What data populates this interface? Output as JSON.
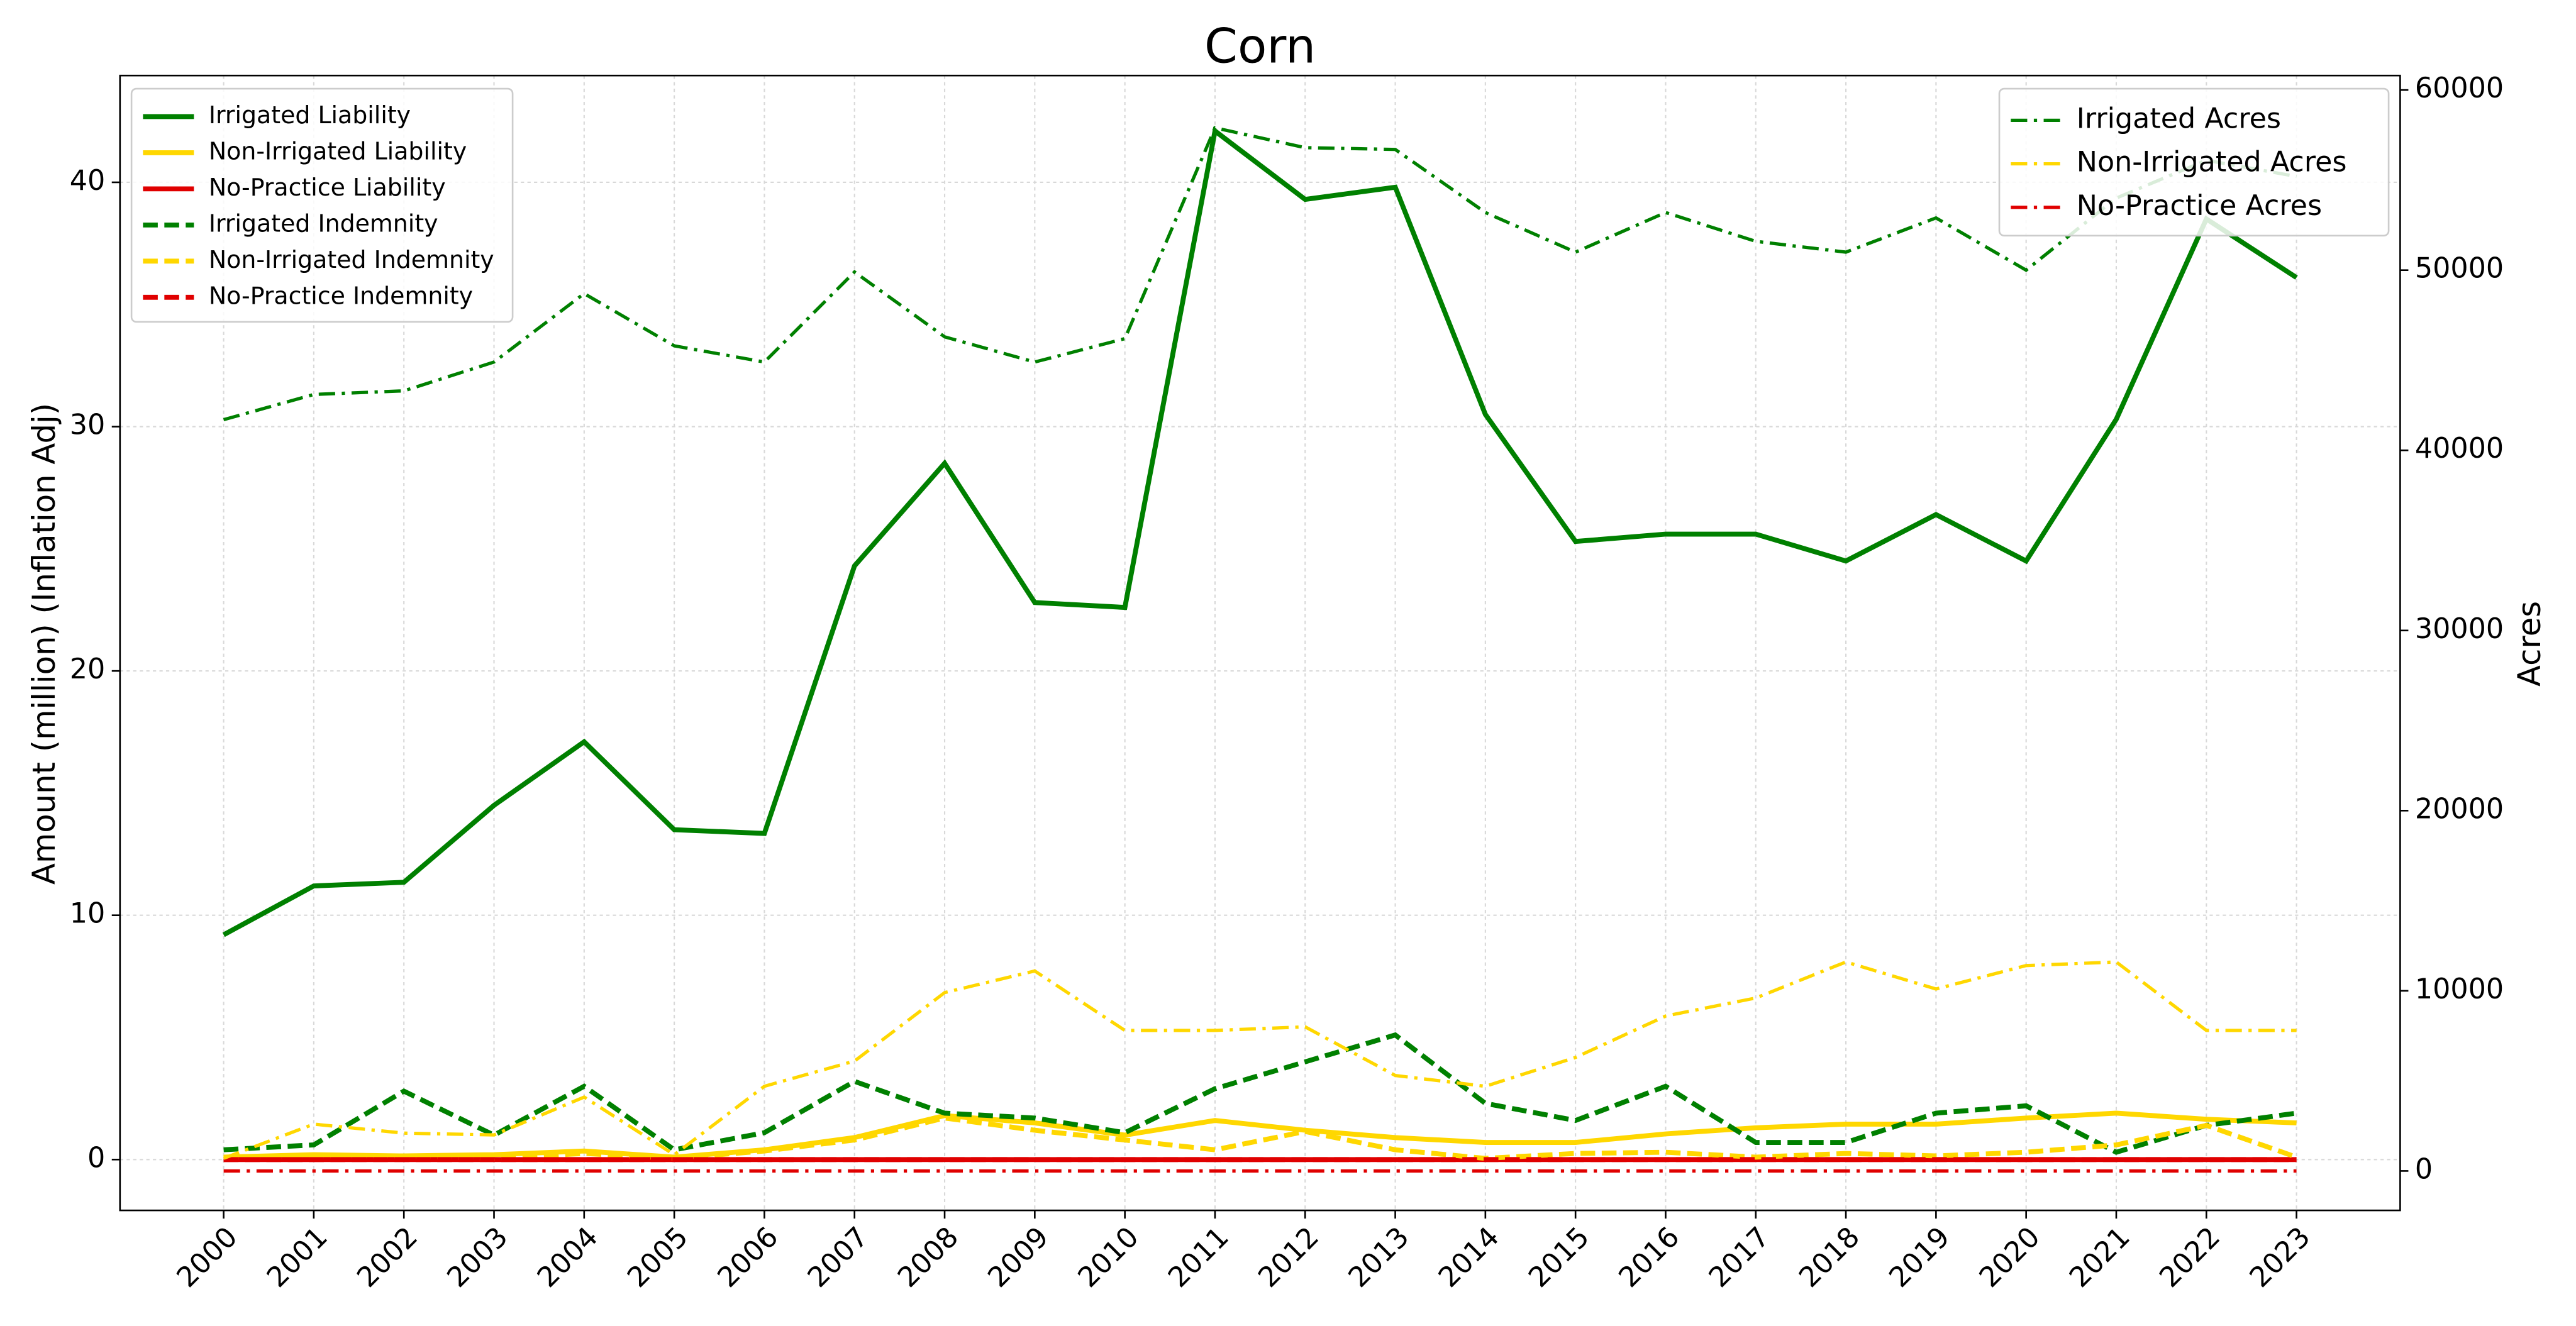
{
  "chart_data": {
    "type": "line",
    "title": "Corn",
    "ylabel": "Amount (million) (Inflation Adj)",
    "y2label": "Acres",
    "categories": [
      "2000",
      "2001",
      "2002",
      "2003",
      "2004",
      "2005",
      "2006",
      "2007",
      "2008",
      "2009",
      "2010",
      "2011",
      "2012",
      "2013",
      "2014",
      "2015",
      "2016",
      "2017",
      "2018",
      "2019",
      "2020",
      "2021",
      "2022",
      "2023"
    ],
    "ylim": [
      -2.08,
      44.37
    ],
    "yticks": [
      0,
      10,
      20,
      30,
      40
    ],
    "y2lim": [
      -2188,
      60802
    ],
    "y2ticks": [
      0,
      10000,
      20000,
      30000,
      40000,
      50000,
      60000
    ],
    "grid": true,
    "legend": "upper left",
    "legend2": "upper right",
    "series": [
      {
        "name": "Irrigated Liability",
        "color": "#008000",
        "style": "solid",
        "values": [
          9.2,
          11.2,
          11.35,
          14.5,
          17.1,
          13.5,
          13.35,
          24.3,
          28.5,
          22.8,
          22.6,
          42.1,
          39.3,
          39.8,
          30.5,
          25.3,
          25.6,
          25.6,
          24.5,
          26.4,
          24.5,
          30.3,
          38.5,
          36.1
        ]
      },
      {
        "name": "Non-Irrigated Liability",
        "color": "#ffd700",
        "style": "solid",
        "values": [
          0.1,
          0.2,
          0.15,
          0.2,
          0.35,
          0.1,
          0.4,
          0.9,
          1.8,
          1.5,
          1.0,
          1.6,
          1.2,
          0.9,
          0.7,
          0.7,
          1.05,
          1.3,
          1.45,
          1.45,
          1.7,
          1.9,
          1.65,
          1.5
        ]
      },
      {
        "name": "No-Practice Liability",
        "color": "#e00000",
        "style": "solid",
        "values": [
          0,
          0,
          0,
          0,
          0,
          0,
          0,
          0,
          0,
          0,
          0,
          0,
          0,
          0,
          0,
          0,
          0,
          0,
          0,
          0,
          0,
          0,
          0,
          0
        ]
      },
      {
        "name": "Irrigated Indemnity",
        "color": "#008000",
        "style": "dashed",
        "values": [
          0.4,
          0.6,
          2.8,
          1.0,
          3.0,
          0.4,
          1.1,
          3.2,
          1.9,
          1.7,
          1.1,
          2.9,
          4.0,
          5.1,
          2.3,
          1.6,
          3.0,
          0.7,
          0.7,
          1.9,
          2.2,
          0.3,
          1.4,
          1.9
        ]
      },
      {
        "name": "Non-Irrigated Indemnity",
        "color": "#ffd700",
        "style": "dashed",
        "values": [
          0.1,
          0.15,
          0.15,
          0.05,
          0.25,
          0.05,
          0.35,
          0.8,
          1.7,
          1.2,
          0.8,
          0.4,
          1.15,
          0.4,
          0.05,
          0.25,
          0.3,
          0.1,
          0.25,
          0.15,
          0.3,
          0.6,
          1.4,
          0.1
        ]
      },
      {
        "name": "No-Practice Indemnity",
        "color": "#e00000",
        "style": "dashed",
        "values": [
          0,
          0,
          0,
          0,
          0,
          0,
          0,
          0,
          0,
          0,
          0,
          0,
          0,
          0,
          0,
          0,
          0,
          0,
          0,
          0,
          0,
          0,
          0,
          0
        ]
      },
      {
        "name": "Irrigated Acres",
        "color": "#008000",
        "style": "dashdot",
        "axis": "y2",
        "values": [
          41700,
          43100,
          43300,
          44900,
          48700,
          45800,
          44900,
          49900,
          46300,
          44900,
          46200,
          57900,
          56800,
          56700,
          53200,
          51000,
          53200,
          51600,
          51000,
          52900,
          50000,
          54000,
          56100,
          55200
        ]
      },
      {
        "name": "Non-Irrigated Acres",
        "color": "#ffd700",
        "style": "dashdot",
        "axis": "y2",
        "values": [
          700,
          2600,
          2100,
          2000,
          4100,
          900,
          4700,
          6100,
          9900,
          11100,
          7800,
          7800,
          8000,
          5300,
          4700,
          6300,
          8600,
          9600,
          11600,
          10100,
          11400,
          11600,
          7800,
          7800
        ]
      },
      {
        "name": "No-Practice Acres",
        "color": "#e00000",
        "style": "dashdot",
        "axis": "y2",
        "values": [
          0,
          0,
          0,
          0,
          0,
          0,
          0,
          0,
          0,
          0,
          0,
          0,
          0,
          0,
          0,
          0,
          0,
          0,
          0,
          0,
          0,
          0,
          0,
          0
        ]
      }
    ]
  }
}
